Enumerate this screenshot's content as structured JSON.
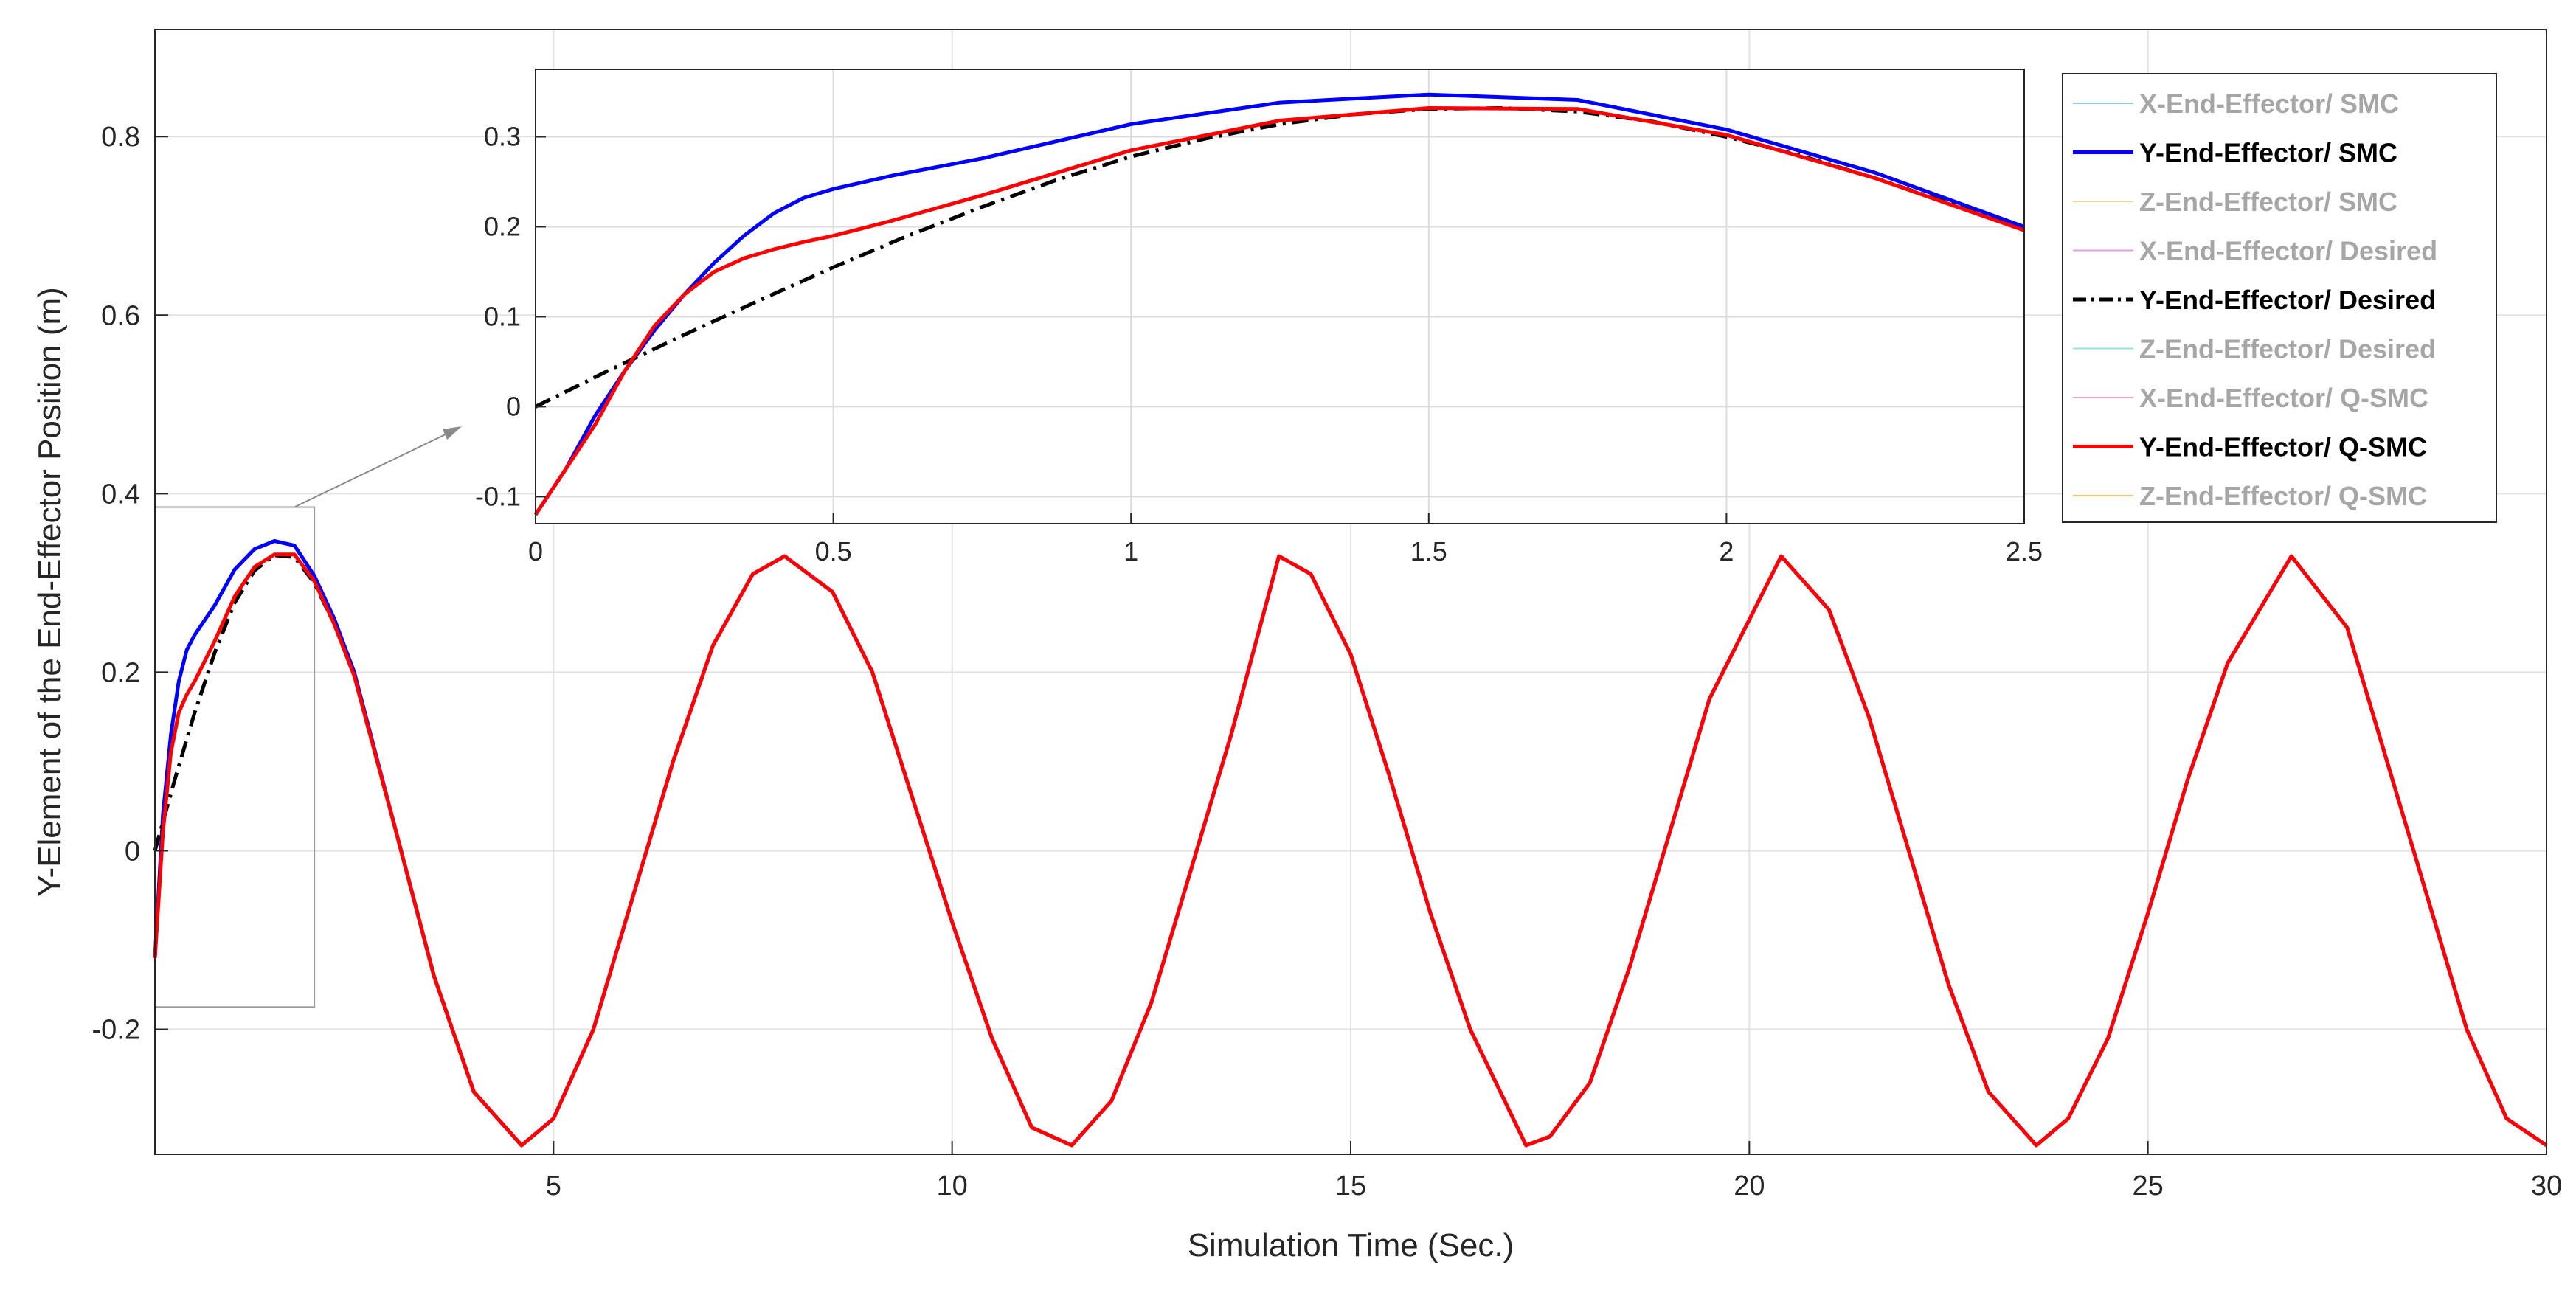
{
  "chart_data": [
    {
      "type": "line",
      "panel": "main",
      "title": "",
      "xlabel": "Simulation Time (Sec.)",
      "ylabel": "Y-Element of the End-Effector Position (m)",
      "xlim": [
        0,
        30
      ],
      "ylim": [
        -0.34,
        0.92
      ],
      "xticks": [
        5,
        10,
        15,
        20,
        25,
        30
      ],
      "yticks": [
        -0.2,
        0,
        0.2,
        0.4,
        0.6,
        0.8
      ],
      "xtick_labels": [
        "5",
        "10",
        "15",
        "20",
        "25",
        "30"
      ],
      "ytick_labels": [
        "-0.2",
        "0",
        "0.2",
        "0.4",
        "0.6",
        "0.8"
      ],
      "grid": true,
      "legend_position": "top-right",
      "series": [
        {
          "name": "Y-End-Effector/ SMC",
          "color": "#0000ff",
          "style": "solid",
          "x": [
            0,
            0.1,
            0.2,
            0.3,
            0.4,
            0.5,
            0.75,
            1.0,
            1.25,
            1.5,
            1.75,
            2.0,
            2.25,
            2.5,
            3,
            3.5,
            4,
            4.6,
            5,
            5.5,
            6,
            6.5,
            7,
            7.5,
            7.9,
            8.5,
            9,
            9.5,
            10,
            10.5,
            11,
            11.5,
            12,
            12.5,
            13,
            13.5,
            14.1,
            14.5,
            15,
            15.5,
            16,
            16.5,
            17.2,
            17.5,
            18,
            18.5,
            19,
            19.5,
            20.4,
            21,
            21.5,
            22,
            22.5,
            23,
            23.6,
            24,
            24.5,
            25,
            25.5,
            26,
            26.8,
            27.5,
            28,
            28.5,
            29,
            29.5,
            30
          ],
          "y": [
            -0.12,
            0.04,
            0.13,
            0.19,
            0.225,
            0.242,
            0.275,
            0.315,
            0.338,
            0.347,
            0.342,
            0.308,
            0.26,
            0.2,
            0.03,
            -0.14,
            -0.27,
            -0.33,
            -0.3,
            -0.2,
            -0.05,
            0.1,
            0.23,
            0.31,
            0.33,
            0.29,
            0.2,
            0.06,
            -0.08,
            -0.21,
            -0.31,
            -0.33,
            -0.28,
            -0.17,
            -0.02,
            0.13,
            0.33,
            0.31,
            0.22,
            0.08,
            -0.07,
            -0.2,
            -0.33,
            -0.32,
            -0.26,
            -0.13,
            0.02,
            0.17,
            0.33,
            0.27,
            0.15,
            0.0,
            -0.15,
            -0.27,
            -0.33,
            -0.3,
            -0.21,
            -0.07,
            0.08,
            0.21,
            0.33,
            0.25,
            0.1,
            -0.05,
            -0.2,
            -0.3,
            -0.33
          ]
        },
        {
          "name": "Y-End-Effector/ Desired",
          "color": "#000000",
          "style": "dashdot",
          "x": [
            0,
            0.25,
            0.5,
            0.75,
            1.0,
            1.25,
            1.5,
            1.75,
            2.0,
            2.25,
            2.5,
            3,
            3.5,
            4,
            4.6
          ],
          "y": [
            0.0,
            0.08,
            0.155,
            0.222,
            0.278,
            0.314,
            0.331,
            0.329,
            0.3,
            0.254,
            0.196,
            0.03,
            -0.14,
            -0.27,
            -0.33
          ]
        },
        {
          "name": "Y-End-Effector/ Q-SMC",
          "color": "#ff0000",
          "style": "solid",
          "x": [
            0,
            0.1,
            0.2,
            0.3,
            0.4,
            0.5,
            0.75,
            1.0,
            1.25,
            1.5,
            1.75,
            2.0,
            2.25,
            2.5,
            3,
            3.5,
            4,
            4.6,
            5,
            5.5,
            6,
            6.5,
            7,
            7.5,
            7.9,
            8.5,
            9,
            9.5,
            10,
            10.5,
            11,
            11.5,
            12,
            12.5,
            13,
            13.5,
            14.1,
            14.5,
            15,
            15.5,
            16,
            16.5,
            17.2,
            17.5,
            18,
            18.5,
            19,
            19.5,
            20.4,
            21,
            21.5,
            22,
            22.5,
            23,
            23.6,
            24,
            24.5,
            25,
            25.5,
            26,
            26.8,
            27.5,
            28,
            28.5,
            29,
            29.5,
            30
          ],
          "y": [
            -0.12,
            0.02,
            0.11,
            0.155,
            0.175,
            0.19,
            0.235,
            0.285,
            0.318,
            0.332,
            0.332,
            0.302,
            0.254,
            0.196,
            0.03,
            -0.14,
            -0.27,
            -0.33,
            -0.3,
            -0.2,
            -0.05,
            0.1,
            0.23,
            0.31,
            0.33,
            0.29,
            0.2,
            0.06,
            -0.08,
            -0.21,
            -0.31,
            -0.33,
            -0.28,
            -0.17,
            -0.02,
            0.13,
            0.33,
            0.31,
            0.22,
            0.08,
            -0.07,
            -0.2,
            -0.33,
            -0.32,
            -0.26,
            -0.13,
            0.02,
            0.17,
            0.33,
            0.27,
            0.15,
            0.0,
            -0.15,
            -0.27,
            -0.33,
            -0.3,
            -0.21,
            -0.07,
            0.08,
            0.21,
            0.33,
            0.25,
            0.1,
            -0.05,
            -0.2,
            -0.3,
            -0.33
          ]
        }
      ]
    },
    {
      "type": "line",
      "panel": "inset",
      "title": "",
      "xlabel": "",
      "ylabel": "",
      "xlim": [
        0,
        2.5
      ],
      "ylim": [
        -0.13,
        0.375
      ],
      "xticks": [
        0,
        0.5,
        1,
        1.5,
        2,
        2.5
      ],
      "yticks": [
        -0.1,
        0,
        0.1,
        0.2,
        0.3
      ],
      "xtick_labels": [
        "0",
        "0.5",
        "1",
        "1.5",
        "2",
        "2.5"
      ],
      "ytick_labels": [
        "-0.1",
        "0",
        "0.1",
        "0.2",
        "0.3"
      ],
      "grid": true,
      "series": [
        {
          "name": "Y-End-Effector/ SMC",
          "color": "#0000ff",
          "style": "solid",
          "x": [
            0,
            0.05,
            0.1,
            0.15,
            0.2,
            0.25,
            0.3,
            0.35,
            0.4,
            0.45,
            0.5,
            0.6,
            0.75,
            1.0,
            1.25,
            1.5,
            1.75,
            2.0,
            2.25,
            2.5
          ],
          "y": [
            -0.12,
            -0.07,
            -0.01,
            0.04,
            0.085,
            0.125,
            0.16,
            0.19,
            0.215,
            0.232,
            0.242,
            0.257,
            0.276,
            0.314,
            0.338,
            0.347,
            0.341,
            0.308,
            0.26,
            0.2
          ]
        },
        {
          "name": "Y-End-Effector/ Desired",
          "color": "#000000",
          "style": "dashdot",
          "x": [
            0,
            0.125,
            0.25,
            0.375,
            0.5,
            0.625,
            0.75,
            0.875,
            1.0,
            1.125,
            1.25,
            1.375,
            1.5,
            1.625,
            1.75,
            1.875,
            2.0,
            2.125,
            2.25,
            2.375,
            2.5
          ],
          "y": [
            0.0,
            0.041,
            0.08,
            0.118,
            0.155,
            0.19,
            0.222,
            0.252,
            0.278,
            0.298,
            0.314,
            0.325,
            0.331,
            0.332,
            0.328,
            0.317,
            0.3,
            0.279,
            0.254,
            0.226,
            0.196
          ]
        },
        {
          "name": "Y-End-Effector/ Q-SMC",
          "color": "#ff0000",
          "style": "solid",
          "x": [
            0,
            0.05,
            0.1,
            0.15,
            0.2,
            0.25,
            0.3,
            0.35,
            0.4,
            0.45,
            0.5,
            0.6,
            0.75,
            1.0,
            1.25,
            1.5,
            1.75,
            2.0,
            2.25,
            2.5
          ],
          "y": [
            -0.12,
            -0.07,
            -0.02,
            0.04,
            0.09,
            0.125,
            0.15,
            0.165,
            0.175,
            0.183,
            0.19,
            0.207,
            0.235,
            0.285,
            0.318,
            0.332,
            0.331,
            0.302,
            0.254,
            0.196
          ]
        }
      ]
    }
  ],
  "legend": [
    {
      "label": "X-End-Effector/ SMC",
      "color": "#8ec8f0",
      "active": false
    },
    {
      "label": "Y-End-Effector/ SMC",
      "color": "#0000ff",
      "active": true,
      "style": "solid"
    },
    {
      "label": "Z-End-Effector/ SMC",
      "color": "#f2d28c",
      "active": false
    },
    {
      "label": "X-End-Effector/ Desired",
      "color": "#e79be7",
      "active": false
    },
    {
      "label": "Y-End-Effector/ Desired",
      "color": "#000000",
      "active": true,
      "style": "dashdot"
    },
    {
      "label": "Z-End-Effector/ Desired",
      "color": "#8fe6e6",
      "active": false
    },
    {
      "label": "X-End-Effector/ Q-SMC",
      "color": "#f0a0d0",
      "active": false
    },
    {
      "label": "Y-End-Effector/ Q-SMC",
      "color": "#ff0000",
      "active": true,
      "style": "solid"
    },
    {
      "label": "Z-End-Effector/ Q-SMC",
      "color": "#f2c27c",
      "active": false
    }
  ]
}
